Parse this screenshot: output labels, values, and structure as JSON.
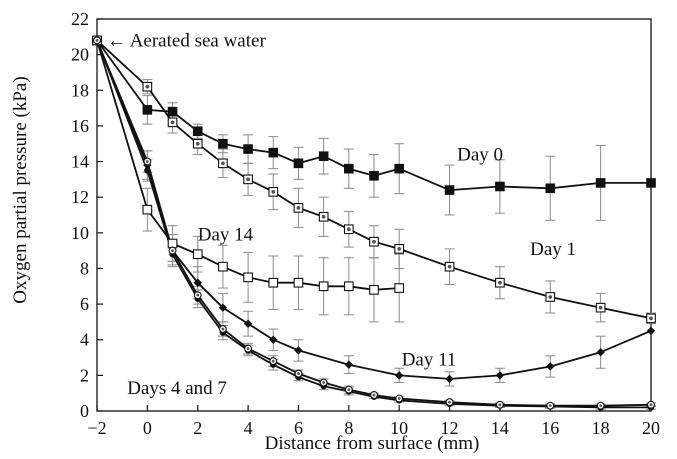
{
  "chart_data": {
    "type": "line",
    "title": "",
    "xlabel": "Distance from surface (mm)",
    "ylabel": "Oxygen partial pressure (kPa)",
    "xlim": [
      -2,
      20
    ],
    "ylim": [
      0,
      22
    ],
    "x_ticks": [
      -2,
      0,
      2,
      4,
      6,
      8,
      10,
      12,
      14,
      16,
      18,
      20
    ],
    "y_ticks": [
      0,
      2,
      4,
      6,
      8,
      10,
      12,
      14,
      16,
      18,
      20,
      22
    ],
    "grid": false,
    "series": [
      {
        "name": "Day 0",
        "marker": "filled-square",
        "x": [
          -2,
          0,
          1,
          2,
          3,
          4,
          5,
          6,
          7,
          8,
          9,
          10,
          12,
          14,
          16,
          18,
          20
        ],
        "y": [
          20.8,
          16.9,
          16.8,
          15.7,
          15.0,
          14.7,
          14.5,
          13.9,
          14.3,
          13.6,
          13.2,
          13.6,
          12.4,
          12.6,
          12.5,
          12.8,
          12.8
        ],
        "err": [
          0,
          0.8,
          0.5,
          0.4,
          0.5,
          0.8,
          0.9,
          0.9,
          1.0,
          1.1,
          1.2,
          1.4,
          1.4,
          1.5,
          1.8,
          2.1,
          0
        ]
      },
      {
        "name": "Day 1",
        "marker": "dotted-square",
        "x": [
          -2,
          0,
          1,
          2,
          3,
          4,
          5,
          6,
          7,
          8,
          9,
          10,
          12,
          14,
          16,
          18,
          20
        ],
        "y": [
          20.8,
          18.2,
          16.2,
          15.0,
          13.9,
          13.0,
          12.3,
          11.4,
          10.9,
          10.2,
          9.5,
          9.1,
          8.1,
          7.2,
          6.4,
          5.8,
          5.2
        ],
        "err": [
          0,
          0.4,
          0.6,
          0.6,
          0.8,
          0.9,
          1.0,
          1.1,
          1.1,
          1.0,
          0.9,
          1.1,
          1.0,
          0.9,
          0.9,
          0.8,
          0.3
        ]
      },
      {
        "name": "Day 14",
        "marker": "open-square",
        "x": [
          -2,
          0,
          1,
          2,
          3,
          4,
          5,
          6,
          7,
          8,
          9,
          10
        ],
        "y": [
          20.8,
          11.3,
          9.4,
          8.8,
          8.1,
          7.5,
          7.2,
          7.2,
          7.0,
          7.0,
          6.8,
          6.9
        ],
        "err": [
          0,
          1.2,
          1.0,
          1.0,
          1.2,
          1.4,
          1.5,
          1.5,
          1.6,
          1.6,
          1.8,
          1.9
        ]
      },
      {
        "name": "Day 11",
        "marker": "filled-diamond",
        "x": [
          -2,
          0,
          1,
          2,
          3,
          4,
          5,
          6,
          8,
          10,
          12,
          14,
          16,
          18,
          20
        ],
        "y": [
          20.8,
          13.8,
          9.0,
          7.2,
          5.8,
          4.9,
          4.0,
          3.4,
          2.6,
          2.0,
          1.8,
          2.0,
          2.5,
          3.3,
          4.5
        ],
        "err": [
          0,
          0.8,
          0.9,
          0.9,
          0.8,
          0.7,
          0.6,
          0.6,
          0.5,
          0.4,
          0.4,
          0.4,
          0.6,
          0.9,
          0
        ]
      },
      {
        "name": "Days 4 and 7",
        "marker": "filled-circle",
        "x": [
          -2,
          0,
          1,
          2,
          3,
          4,
          5,
          6,
          7,
          8,
          9,
          10,
          12,
          14,
          16,
          18,
          20
        ],
        "y": [
          20.8,
          13.5,
          8.8,
          6.3,
          4.4,
          3.4,
          2.6,
          1.9,
          1.4,
          1.1,
          0.8,
          0.6,
          0.4,
          0.3,
          0.25,
          0.2,
          0.2
        ],
        "err": [
          0,
          0.6,
          0.6,
          0.5,
          0.4,
          0.3,
          0.3,
          0.2,
          0.2,
          0.2,
          0.1,
          0.1,
          0.1,
          0.1,
          0.1,
          0.1,
          0.1
        ]
      },
      {
        "name": "Days 4 and 7",
        "marker": "dotted-circle",
        "x": [
          -2,
          0,
          1,
          2,
          3,
          4,
          5,
          6,
          7,
          8,
          9,
          10,
          12,
          14,
          16,
          18,
          20
        ],
        "y": [
          20.8,
          14.0,
          9.0,
          6.5,
          4.6,
          3.5,
          2.8,
          2.1,
          1.6,
          1.2,
          0.9,
          0.7,
          0.5,
          0.35,
          0.3,
          0.3,
          0.35
        ],
        "err": [
          0,
          0.6,
          0.6,
          0.5,
          0.4,
          0.3,
          0.3,
          0.2,
          0.2,
          0.2,
          0.1,
          0.1,
          0.1,
          0.1,
          0.1,
          0.1,
          0.1
        ]
      }
    ],
    "annotations": [
      {
        "text": "← Aerated sea water",
        "x": -2,
        "y": 20.8
      },
      {
        "text": "Day 0",
        "x": 12.3,
        "y": 14.4
      },
      {
        "text": "Day 1",
        "x": 15.2,
        "y": 9.1
      },
      {
        "text": "Day 14",
        "x": 2.0,
        "y": 9.9
      },
      {
        "text": "Day 11",
        "x": 10.1,
        "y": 2.9
      },
      {
        "text": "Days 4 and 7",
        "x": -0.8,
        "y": 1.3
      }
    ]
  }
}
